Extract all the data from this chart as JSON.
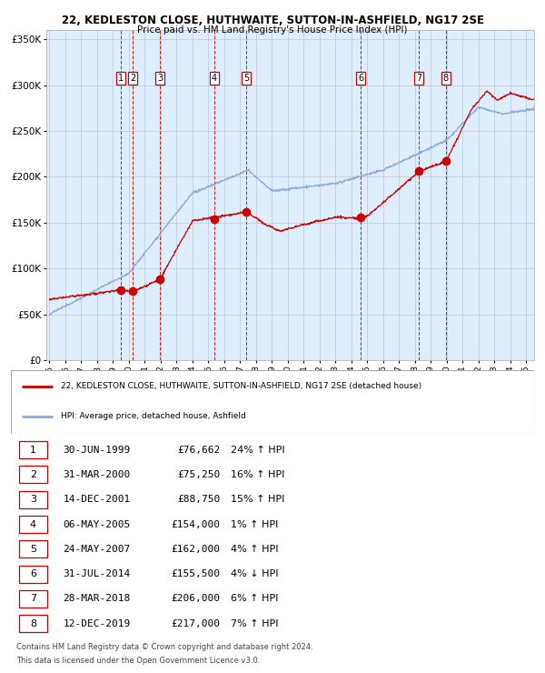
{
  "title1": "22, KEDLESTON CLOSE, HUTHWAITE, SUTTON-IN-ASHFIELD, NG17 2SE",
  "title2": "Price paid vs. HM Land Registry's House Price Index (HPI)",
  "xlim": [
    1994.8,
    2025.5
  ],
  "ylim": [
    0,
    360000
  ],
  "yticks": [
    0,
    50000,
    100000,
    150000,
    200000,
    250000,
    300000,
    350000
  ],
  "ytick_labels": [
    "£0",
    "£50K",
    "£100K",
    "£150K",
    "£200K",
    "£250K",
    "£300K",
    "£350K"
  ],
  "xticks": [
    1995,
    1996,
    1997,
    1998,
    1999,
    2000,
    2001,
    2002,
    2003,
    2004,
    2005,
    2006,
    2007,
    2008,
    2009,
    2010,
    2011,
    2012,
    2013,
    2014,
    2015,
    2016,
    2017,
    2018,
    2019,
    2020,
    2021,
    2022,
    2023,
    2024,
    2025
  ],
  "sales": [
    {
      "num": 1,
      "year": 1999.49,
      "price": 76662,
      "date": "30-JUN-1999",
      "pct": "24%",
      "dir": "↑"
    },
    {
      "num": 2,
      "year": 2000.24,
      "price": 75250,
      "date": "31-MAR-2000",
      "pct": "16%",
      "dir": "↑"
    },
    {
      "num": 3,
      "year": 2001.95,
      "price": 88750,
      "date": "14-DEC-2001",
      "pct": "15%",
      "dir": "↑"
    },
    {
      "num": 4,
      "year": 2005.37,
      "price": 154000,
      "date": "06-MAY-2005",
      "pct": "1%",
      "dir": "↑"
    },
    {
      "num": 5,
      "year": 2007.39,
      "price": 162000,
      "date": "24-MAY-2007",
      "pct": "4%",
      "dir": "↑"
    },
    {
      "num": 6,
      "year": 2014.58,
      "price": 155500,
      "date": "31-JUL-2014",
      "pct": "4%",
      "dir": "↓"
    },
    {
      "num": 7,
      "year": 2018.23,
      "price": 206000,
      "date": "28-MAR-2018",
      "pct": "6%",
      "dir": "↑"
    },
    {
      "num": 8,
      "year": 2019.95,
      "price": 217000,
      "date": "12-DEC-2019",
      "pct": "7%",
      "dir": "↑"
    }
  ],
  "legend_line1": "22, KEDLESTON CLOSE, HUTHWAITE, SUTTON-IN-ASHFIELD, NG17 2SE (detached house)",
  "legend_line2": "HPI: Average price, detached house, Ashfield",
  "footer1": "Contains HM Land Registry data © Crown copyright and database right 2024.",
  "footer2": "This data is licensed under the Open Government Licence v3.0.",
  "hpi_color": "#88aadd",
  "price_color": "#cc0000",
  "bg_color": "#ddeeff",
  "sale_marker_color": "#cc0000",
  "vline_color": "#cc0000",
  "table_rows": [
    [
      "1",
      "30-JUN-1999",
      "£76,662",
      "24% ↑ HPI"
    ],
    [
      "2",
      "31-MAR-2000",
      "£75,250",
      "16% ↑ HPI"
    ],
    [
      "3",
      "14-DEC-2001",
      "£88,750",
      "15% ↑ HPI"
    ],
    [
      "4",
      "06-MAY-2005",
      "£154,000",
      "1% ↑ HPI"
    ],
    [
      "5",
      "24-MAY-2007",
      "£162,000",
      "4% ↑ HPI"
    ],
    [
      "6",
      "31-JUL-2014",
      "£155,500",
      "4% ↓ HPI"
    ],
    [
      "7",
      "28-MAR-2018",
      "£206,000",
      "6% ↑ HPI"
    ],
    [
      "8",
      "12-DEC-2019",
      "£217,000",
      "7% ↑ HPI"
    ]
  ]
}
